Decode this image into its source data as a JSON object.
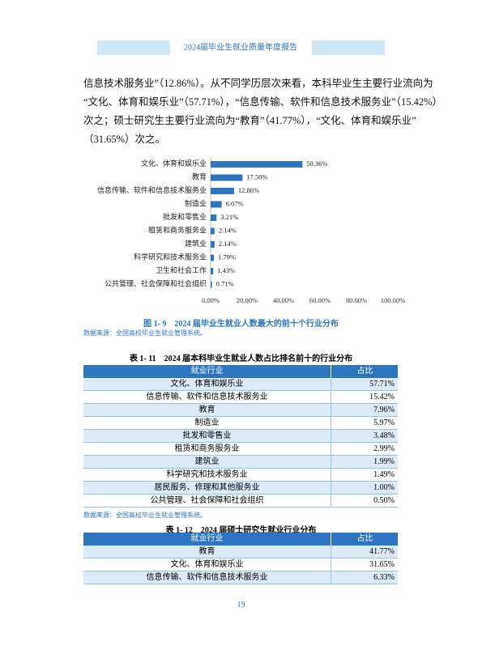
{
  "header": {
    "title": "2024届毕业生就业质量年度报告"
  },
  "paragraph": {
    "lines": [
      "信息技术服务业”（12.86%）。从不同学历层次来看，本科毕业生主要行业流向为",
      "“文化、体育和娱乐业”（57.71%），“信息传输、软件和信息技术服务业”（15.42%）",
      "次之；硕士研究生主要行业流向为“教育”（41.77%），“文化、体育和娱乐业”",
      "（31.65%）次之。"
    ]
  },
  "figure": {
    "chart": {
      "type": "bar",
      "orientation": "horizontal",
      "color": "#2e75c0",
      "categories": [
        "文化、体育和娱乐业",
        "教育",
        "信息传输、软件和信息技术服务业",
        "制造业",
        "批发和零售业",
        "租赁和商务服务业",
        "建筑业",
        "科学研究和技术服务业",
        "卫生和社会工作",
        "公共管理、社会保障和社会组织"
      ],
      "values": [
        50.36,
        17.5,
        12.86,
        6.07,
        3.21,
        2.14,
        2.14,
        1.79,
        1.43,
        0.71
      ],
      "value_labels": [
        "50.36%",
        "17.50%",
        "12.86%",
        "6.07%",
        "3.21%",
        "2.14%",
        "2.14%",
        "1.79%",
        "1.43%",
        "0.71%"
      ],
      "xlim": [
        0,
        100
      ],
      "xticks": [
        {
          "value": 0,
          "label": "0.00%"
        },
        {
          "value": 20,
          "label": "20.00%"
        },
        {
          "value": 40,
          "label": "40.00%"
        },
        {
          "value": 60,
          "label": "60.00%"
        },
        {
          "value": 80,
          "label": "80.00%"
        },
        {
          "value": 100,
          "label": "100.00%"
        }
      ]
    },
    "caption": "图 1- 9　2024 届毕业生就业人数最大的前十个行业分布",
    "source": "数据来源：全国高校毕业生就业管理系统。"
  },
  "table1": {
    "title": "表 1- 11　2024 届本科毕业生就业人数占比排名前十的行业分布",
    "header": [
      "就业行业",
      "占比"
    ],
    "rows": [
      [
        "文化、体育和娱乐业",
        "57.71%"
      ],
      [
        "信息传输、软件和信息技术服务业",
        "15.42%"
      ],
      [
        "教育",
        "7.96%"
      ],
      [
        "制造业",
        "5.97%"
      ],
      [
        "批发和零售业",
        "3.48%"
      ],
      [
        "租赁和商务服务业",
        "2.99%"
      ],
      [
        "建筑业",
        "1.99%"
      ],
      [
        "科学研究和技术服务业",
        "1.49%"
      ],
      [
        "居民服务、修理和其他服务业",
        "1.00%"
      ],
      [
        "公共管理、社会保障和社会组织",
        "0.50%"
      ]
    ],
    "source": "数据来源：全国高校毕业生就业管理系统。"
  },
  "table2": {
    "title": "表 1- 12　2024 届硕士研究生就业行业分布",
    "header": [
      "就业行业",
      "占比"
    ],
    "rows": [
      [
        "教育",
        "41.77%"
      ],
      [
        "文化、体育和娱乐业",
        "31.65%"
      ],
      [
        "信息传输、软件和信息技术服务业",
        "6.33%"
      ]
    ]
  },
  "page_number": "19"
}
